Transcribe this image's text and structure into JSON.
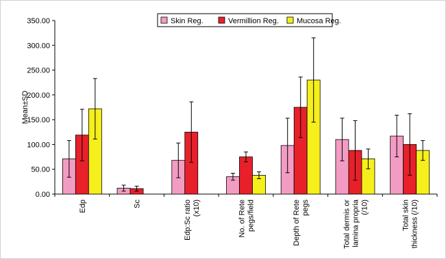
{
  "chart_data": {
    "type": "bar",
    "title": "",
    "xlabel": "",
    "ylabel": "Mean±SD",
    "ylim": [
      0,
      350
    ],
    "yticks": [
      "0.00",
      "50.00",
      "100.00",
      "150.00",
      "200.00",
      "250.00",
      "300.00",
      "350.00"
    ],
    "grid": false,
    "legend_position": "top-center",
    "categories": [
      [
        "Edp"
      ],
      [
        "Sc"
      ],
      [
        "Edp:Sc ratio",
        "(x10)"
      ],
      [
        "No. of Rete",
        "pegs/field"
      ],
      [
        "Depth of Rete",
        "pegs"
      ],
      [
        "Total dermis or",
        "lamina propria",
        "(/10)"
      ],
      [
        "Total skin",
        "thickness (/10)"
      ]
    ],
    "series": [
      {
        "name": "Skin Reg.",
        "color": "#f39cc3",
        "values": [
          71,
          12,
          68,
          35,
          98,
          110,
          117
        ],
        "sd": [
          37,
          6,
          35,
          7,
          55,
          43,
          42
        ]
      },
      {
        "name": "Vermillion Reg.",
        "color": "#e8202a",
        "values": [
          119,
          11,
          125,
          75,
          175,
          88,
          100
        ],
        "sd": [
          52,
          5,
          61,
          10,
          61,
          60,
          62
        ]
      },
      {
        "name": "Mucosa Reg.",
        "color": "#f5ef1b",
        "values": [
          172,
          null,
          null,
          38,
          230,
          71,
          88
        ],
        "sd": [
          61,
          null,
          null,
          7,
          85,
          20,
          20
        ]
      }
    ]
  }
}
